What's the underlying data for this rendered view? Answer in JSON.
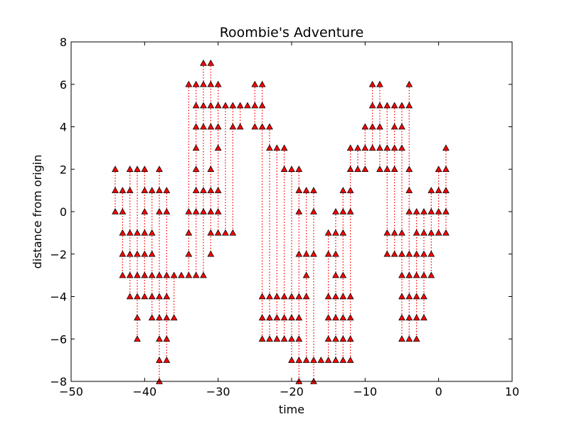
{
  "chart_data": {
    "type": "scatter",
    "title": "Roombie's Adventure",
    "xlabel": "time",
    "ylabel": "distance from origin",
    "xlim": [
      -50,
      10
    ],
    "ylim": [
      -8,
      8
    ],
    "xticks": [
      -50,
      -40,
      -30,
      -20,
      -10,
      0,
      10
    ],
    "yticks": [
      -8,
      -6,
      -4,
      -2,
      0,
      2,
      4,
      6,
      8
    ],
    "xtick_labels": [
      "−50",
      "−40",
      "−30",
      "−20",
      "−10",
      "0",
      "10"
    ],
    "ytick_labels": [
      "−8",
      "−6",
      "−4",
      "−2",
      "0",
      "2",
      "4",
      "6",
      "8"
    ],
    "grid": false,
    "marker": "triangle-up",
    "marker_color": "#ff0000",
    "marker_edge": "#000000",
    "line_style": "dotted",
    "line_color": "#ff0000",
    "columns": [
      {
        "x": -44,
        "y": [
          2,
          1,
          0
        ]
      },
      {
        "x": -43,
        "y": [
          1,
          0,
          -1,
          -2,
          -3
        ]
      },
      {
        "x": -42,
        "y": [
          2,
          1,
          -1,
          -2,
          -3,
          -4
        ]
      },
      {
        "x": -41,
        "y": [
          2,
          -1,
          -2,
          -3,
          -4,
          -5,
          -6
        ]
      },
      {
        "x": -40,
        "y": [
          2,
          1,
          0,
          -1,
          -2,
          -3,
          -4
        ]
      },
      {
        "x": -39,
        "y": [
          1,
          -1,
          -2,
          -3,
          -4,
          -5
        ]
      },
      {
        "x": -38,
        "y": [
          2,
          1,
          0,
          -3,
          -4,
          -5,
          -6,
          -7,
          -8
        ]
      },
      {
        "x": -37,
        "y": [
          1,
          0,
          -3,
          -4,
          -5,
          -6,
          -7
        ]
      },
      {
        "x": -36,
        "y": [
          -3,
          -5
        ]
      },
      {
        "x": -35,
        "y": [
          -3
        ]
      },
      {
        "x": -34,
        "y": [
          6,
          0,
          -1,
          -2,
          -3
        ]
      },
      {
        "x": -33,
        "y": [
          6,
          5,
          4,
          3,
          2,
          1,
          0,
          -3
        ]
      },
      {
        "x": -32,
        "y": [
          7,
          6,
          5,
          4,
          1,
          0,
          -3
        ]
      },
      {
        "x": -31,
        "y": [
          7,
          6,
          5,
          4,
          2,
          1,
          0,
          -1,
          -2
        ]
      },
      {
        "x": -30,
        "y": [
          6,
          5,
          4,
          3,
          1,
          0,
          -1
        ]
      },
      {
        "x": -29,
        "y": [
          5,
          -1
        ]
      },
      {
        "x": -28,
        "y": [
          5,
          4,
          -1
        ]
      },
      {
        "x": -27,
        "y": [
          5,
          4
        ]
      },
      {
        "x": -26,
        "y": [
          5
        ]
      },
      {
        "x": -25,
        "y": [
          6,
          5,
          4
        ]
      },
      {
        "x": -24,
        "y": [
          6,
          5,
          4,
          -4,
          -5,
          -6
        ]
      },
      {
        "x": -23,
        "y": [
          4,
          3,
          -4,
          -5,
          -6
        ]
      },
      {
        "x": -22,
        "y": [
          3,
          -4,
          -5,
          -6
        ]
      },
      {
        "x": -21,
        "y": [
          3,
          2,
          -4,
          -5,
          -6
        ]
      },
      {
        "x": -20,
        "y": [
          2,
          -4,
          -5,
          -6,
          -7
        ]
      },
      {
        "x": -19,
        "y": [
          2,
          1,
          0,
          -2,
          -4,
          -5,
          -6,
          -7,
          -8
        ]
      },
      {
        "x": -18,
        "y": [
          1,
          -2,
          -3,
          -4,
          -7
        ]
      },
      {
        "x": -17,
        "y": [
          1,
          0,
          -2,
          -7,
          -8
        ]
      },
      {
        "x": -16,
        "y": [
          -7
        ]
      },
      {
        "x": -15,
        "y": [
          -1,
          -2,
          -4,
          -5,
          -6,
          -7
        ]
      },
      {
        "x": -14,
        "y": [
          0,
          -1,
          -2,
          -3,
          -4,
          -5,
          -6,
          -7
        ]
      },
      {
        "x": -13,
        "y": [
          1,
          0,
          -1,
          -3,
          -4,
          -5,
          -6,
          -7
        ]
      },
      {
        "x": -12,
        "y": [
          3,
          2,
          1,
          0,
          -4,
          -5,
          -6,
          -7
        ]
      },
      {
        "x": -11,
        "y": [
          3,
          2
        ]
      },
      {
        "x": -10,
        "y": [
          4,
          3,
          2
        ]
      },
      {
        "x": -9,
        "y": [
          6,
          5,
          4,
          3
        ]
      },
      {
        "x": -8,
        "y": [
          6,
          5,
          4,
          3,
          2
        ]
      },
      {
        "x": -7,
        "y": [
          5,
          3,
          2,
          -1,
          -2
        ]
      },
      {
        "x": -6,
        "y": [
          5,
          4,
          3,
          2,
          -1,
          -2
        ]
      },
      {
        "x": -5,
        "y": [
          5,
          4,
          3,
          -1,
          -2,
          -3,
          -4,
          -5,
          -6
        ]
      },
      {
        "x": -4,
        "y": [
          6,
          5,
          2,
          1,
          0,
          -2,
          -3,
          -4,
          -5,
          -6
        ]
      },
      {
        "x": -3,
        "y": [
          0,
          -1,
          -2,
          -3,
          -4,
          -5,
          -6
        ]
      },
      {
        "x": -2,
        "y": [
          0,
          -1,
          -2,
          -3,
          -4,
          -5
        ]
      },
      {
        "x": -1,
        "y": [
          1,
          0,
          -1,
          -2,
          -3
        ]
      },
      {
        "x": 0,
        "y": [
          2,
          1,
          0,
          -1
        ]
      },
      {
        "x": 1,
        "y": [
          3,
          2,
          1,
          0,
          -1
        ]
      }
    ]
  }
}
